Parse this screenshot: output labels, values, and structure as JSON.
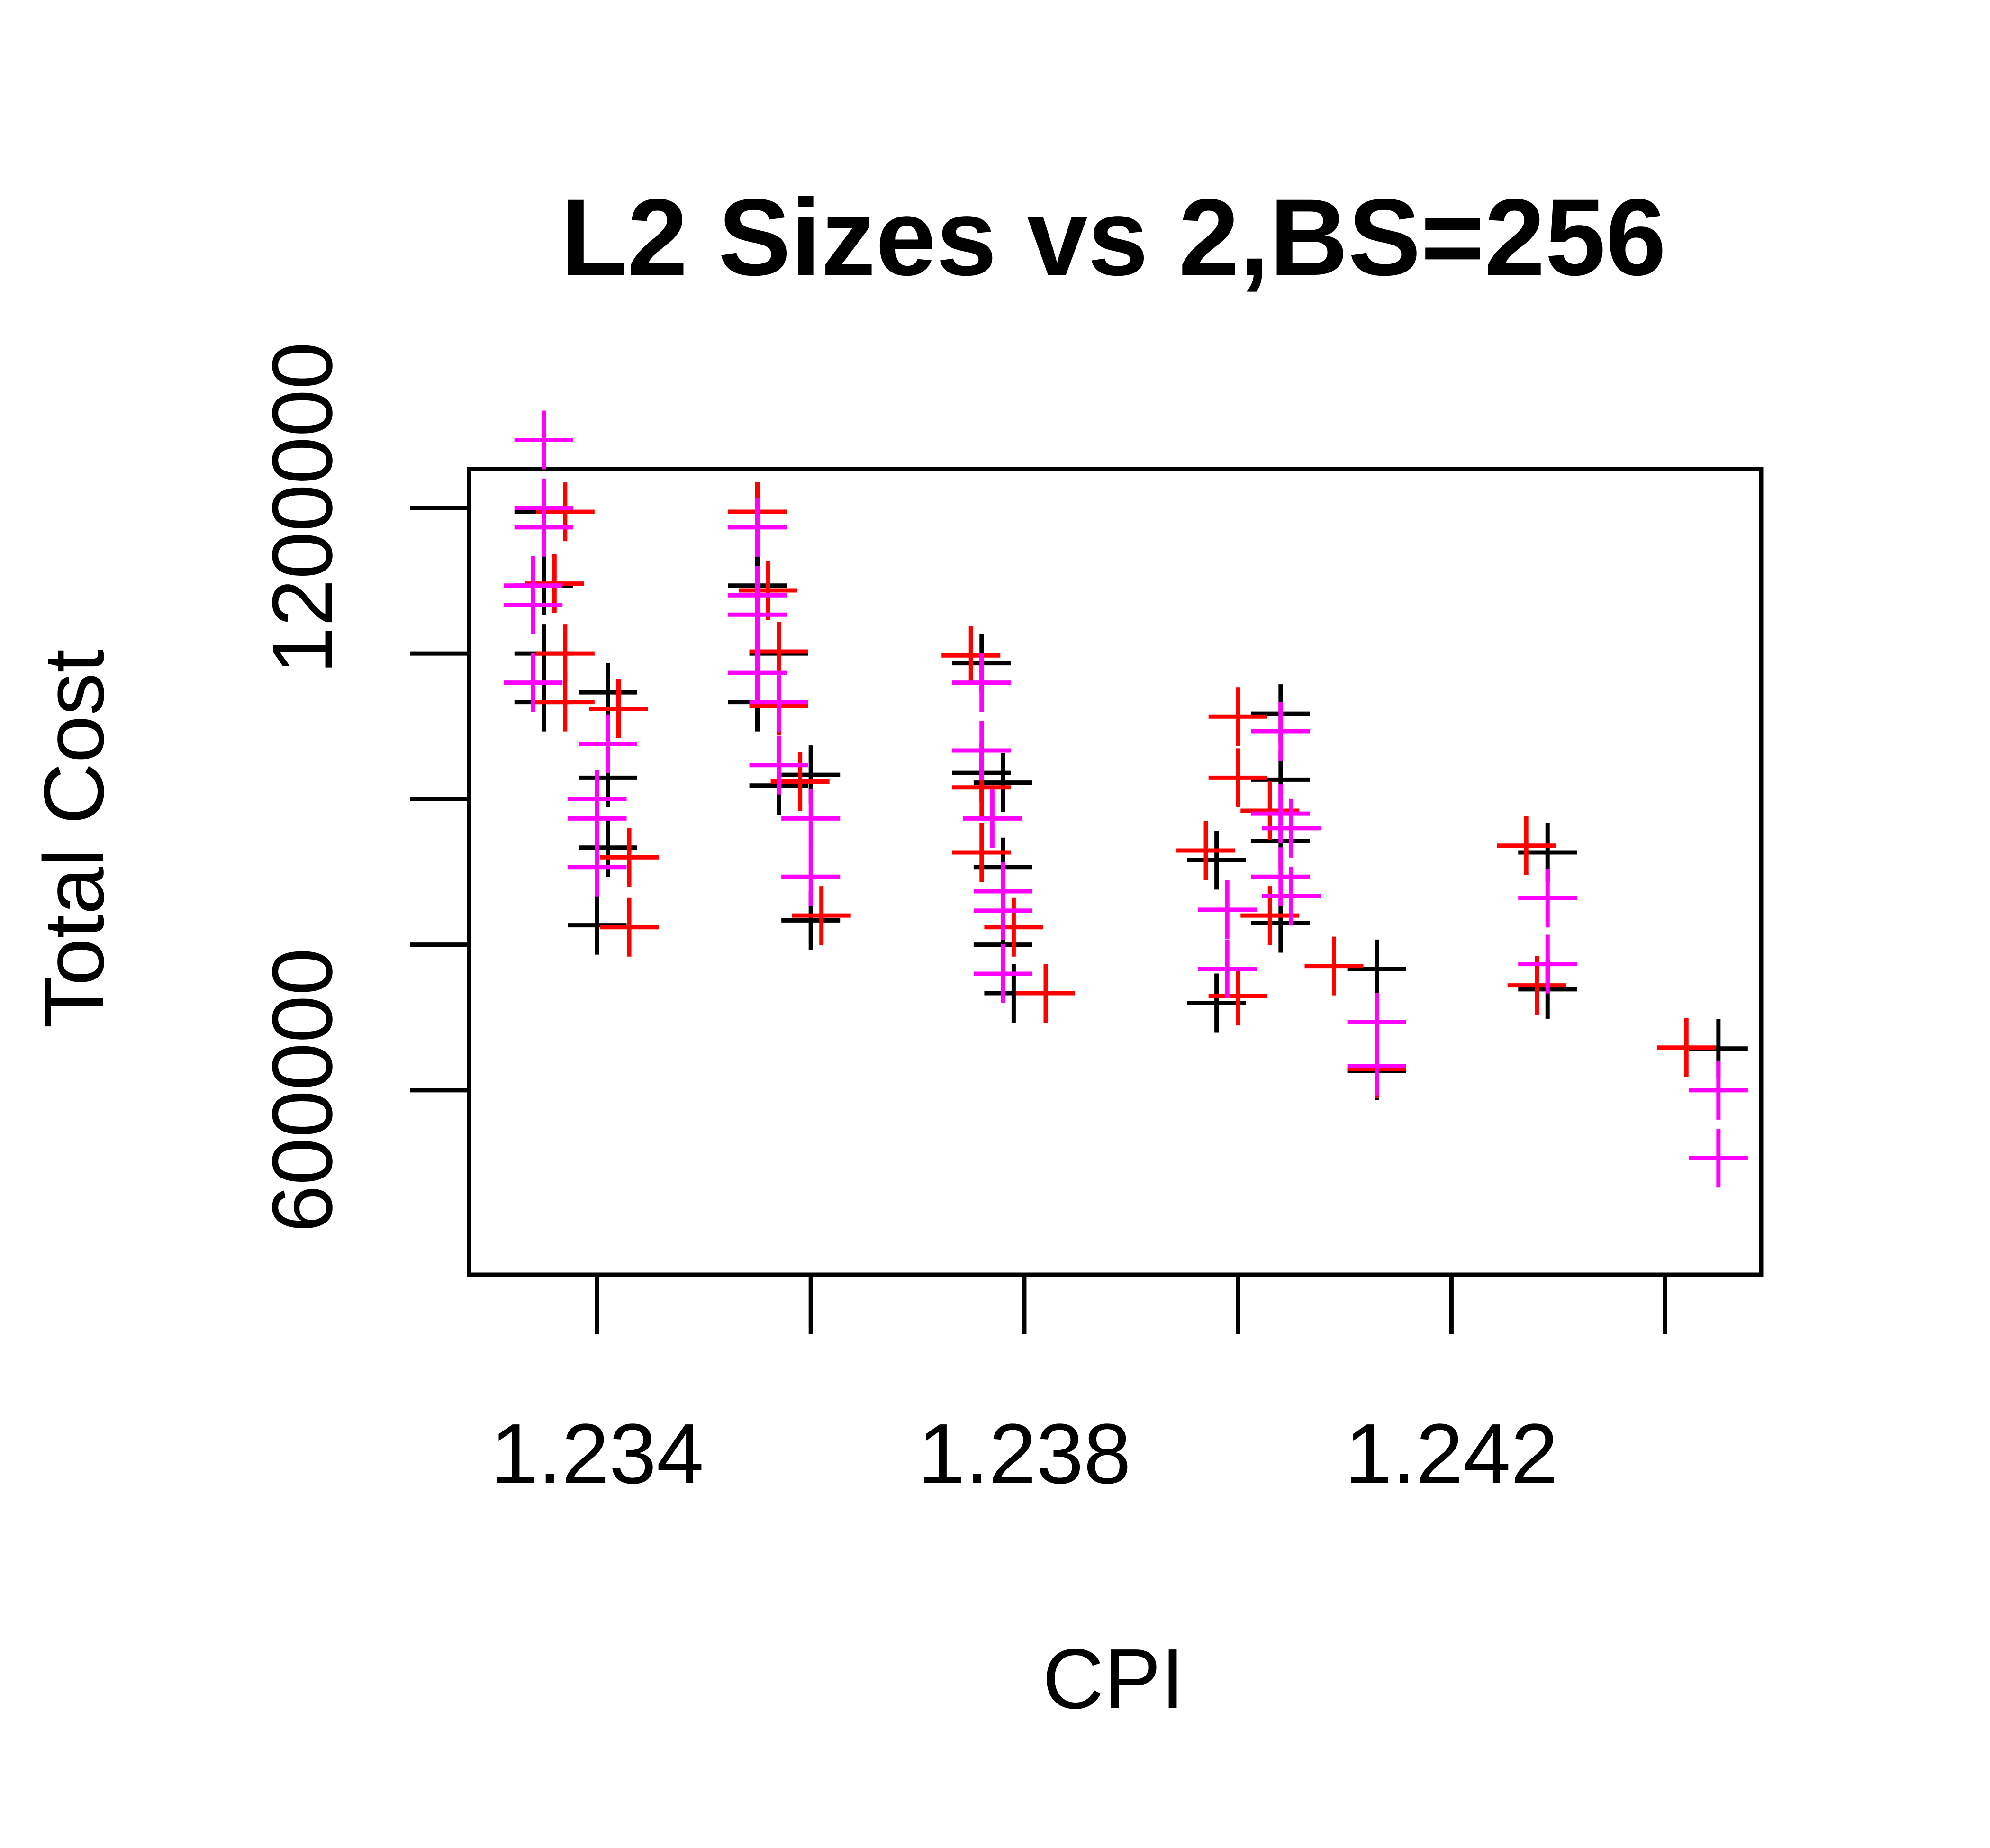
{
  "chart_data": {
    "type": "scatter",
    "title": "L2 Sizes vs 2,BS=256",
    "xlabel": "CPI",
    "ylabel": "Total Cost",
    "xlim": [
      1.2328,
      1.2449
    ],
    "ylim": [
      410000,
      1240000
    ],
    "xticks": [
      1.234,
      1.236,
      1.238,
      1.24,
      1.242,
      1.244
    ],
    "xtick_labels": [
      "1.234",
      "",
      "1.238",
      "",
      "1.242",
      ""
    ],
    "yticks": [
      600000,
      750000,
      900000,
      1050000,
      1200000
    ],
    "ytick_labels": [
      "600000",
      "",
      "",
      "",
      "1200000"
    ],
    "marker": "plus",
    "grid": false,
    "legend": "none",
    "series": [
      {
        "color": "#000000",
        "points": [
          [
            1.2335,
            1196000
          ],
          [
            1.2335,
            1120000
          ],
          [
            1.2335,
            1050000
          ],
          [
            1.2335,
            1000000
          ],
          [
            1.2341,
            1010000
          ],
          [
            1.2341,
            922000
          ],
          [
            1.2341,
            850000
          ],
          [
            1.234,
            770000
          ],
          [
            1.2355,
            1196000
          ],
          [
            1.2355,
            1120000
          ],
          [
            1.2357,
            1050000
          ],
          [
            1.2355,
            1000000
          ],
          [
            1.2357,
            1000000
          ],
          [
            1.2357,
            914000
          ],
          [
            1.236,
            925000
          ],
          [
            1.236,
            775000
          ],
          [
            1.2376,
            1040000
          ],
          [
            1.2376,
            927000
          ],
          [
            1.2378,
            917000
          ],
          [
            1.2378,
            830000
          ],
          [
            1.2378,
            750000
          ],
          [
            1.2379,
            700000
          ],
          [
            1.2398,
            837000
          ],
          [
            1.2398,
            690000
          ],
          [
            1.2404,
            988000
          ],
          [
            1.2404,
            920000
          ],
          [
            1.2404,
            857000
          ],
          [
            1.2404,
            772000
          ],
          [
            1.2413,
            725000
          ],
          [
            1.2413,
            620000
          ],
          [
            1.2429,
            845000
          ],
          [
            1.2429,
            704000
          ],
          [
            1.2445,
            643000
          ]
        ]
      },
      {
        "color": "#ff0000",
        "points": [
          [
            1.2337,
            1196000
          ],
          [
            1.2336,
            1122000
          ],
          [
            1.2337,
            1050000
          ],
          [
            1.2337,
            1000000
          ],
          [
            1.2342,
            993000
          ],
          [
            1.2343,
            840000
          ],
          [
            1.2343,
            768000
          ],
          [
            1.2355,
            1196000
          ],
          [
            1.2356,
            1115000
          ],
          [
            1.2357,
            1052000
          ],
          [
            1.2357,
            996000
          ],
          [
            1.2359,
            918000
          ],
          [
            1.2361,
            780000
          ],
          [
            1.2375,
            1048000
          ],
          [
            1.2376,
            912000
          ],
          [
            1.2376,
            845000
          ],
          [
            1.2379,
            768000
          ],
          [
            1.2382,
            700000
          ],
          [
            1.2397,
            847000
          ],
          [
            1.24,
            985000
          ],
          [
            1.24,
            922000
          ],
          [
            1.24,
            697000
          ],
          [
            1.2403,
            888000
          ],
          [
            1.2403,
            780000
          ],
          [
            1.2409,
            728000
          ],
          [
            1.2413,
            622000
          ],
          [
            1.2427,
            852000
          ],
          [
            1.2428,
            708000
          ],
          [
            1.2442,
            644000
          ]
        ]
      },
      {
        "color": "#ff00ff",
        "points": [
          [
            1.2335,
            1270000
          ],
          [
            1.2335,
            1200000
          ],
          [
            1.2335,
            1180000
          ],
          [
            1.2334,
            1120000
          ],
          [
            1.2334,
            1100000
          ],
          [
            1.2334,
            1020000
          ],
          [
            1.2341,
            957000
          ],
          [
            1.234,
            900000
          ],
          [
            1.234,
            880000
          ],
          [
            1.234,
            830000
          ],
          [
            1.2355,
            1180000
          ],
          [
            1.2355,
            1110000
          ],
          [
            1.2355,
            1090000
          ],
          [
            1.2355,
            1030000
          ],
          [
            1.2357,
            1000000
          ],
          [
            1.2357,
            935000
          ],
          [
            1.236,
            880000
          ],
          [
            1.236,
            820000
          ],
          [
            1.2376,
            1020000
          ],
          [
            1.2376,
            950000
          ],
          [
            1.2377,
            880000
          ],
          [
            1.2378,
            805000
          ],
          [
            1.2378,
            785000
          ],
          [
            1.2378,
            720000
          ],
          [
            1.2399,
            786000
          ],
          [
            1.2399,
            725000
          ],
          [
            1.2404,
            970000
          ],
          [
            1.2404,
            885000
          ],
          [
            1.2405,
            870000
          ],
          [
            1.2404,
            820000
          ],
          [
            1.2405,
            800000
          ],
          [
            1.2413,
            670000
          ],
          [
            1.2413,
            625000
          ],
          [
            1.2429,
            798000
          ],
          [
            1.2429,
            730000
          ],
          [
            1.2445,
            600000
          ],
          [
            1.2445,
            530000
          ]
        ]
      }
    ]
  }
}
